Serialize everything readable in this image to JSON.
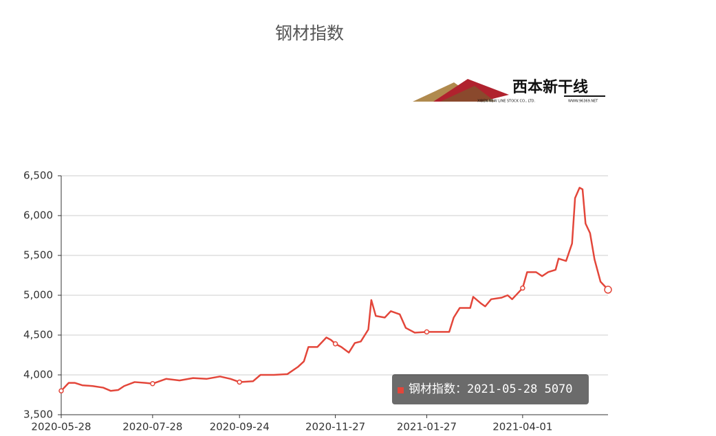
{
  "chart_data": {
    "type": "line",
    "title": "钢材指数",
    "logo": {
      "name": "西本新干线",
      "company": "XIBEN NEW LINE STOCK CO., LTD.",
      "url": "WWW.96369.NET"
    },
    "tooltip": "钢材指数：2021-05-28 5070",
    "x": [
      "2020-05-28",
      "2020-06-02",
      "2020-06-06",
      "2020-06-11",
      "2020-06-18",
      "2020-06-25",
      "2020-06-30",
      "2020-07-05",
      "2020-07-09",
      "2020-07-16",
      "2020-07-23",
      "2020-07-28",
      "2020-08-06",
      "2020-08-15",
      "2020-08-24",
      "2020-09-02",
      "2020-09-11",
      "2020-09-18",
      "2020-09-24",
      "2020-10-03",
      "2020-10-08",
      "2020-10-17",
      "2020-10-26",
      "2020-11-02",
      "2020-11-06",
      "2020-11-09",
      "2020-11-15",
      "2020-11-21",
      "2020-11-24",
      "2020-11-27",
      "2020-12-01",
      "2020-12-06",
      "2020-12-10",
      "2020-12-14",
      "2020-12-19",
      "2020-12-21",
      "2020-12-24",
      "2020-12-30",
      "2021-01-03",
      "2021-01-09",
      "2021-01-13",
      "2021-01-19",
      "2021-01-27",
      "2021-02-11",
      "2021-02-14",
      "2021-02-18",
      "2021-02-25",
      "2021-02-27",
      "2021-03-04",
      "2021-03-07",
      "2021-03-11",
      "2021-03-18",
      "2021-03-22",
      "2021-03-25",
      "2021-04-01",
      "2021-04-04",
      "2021-04-10",
      "2021-04-14",
      "2021-04-18",
      "2021-04-23",
      "2021-04-25",
      "2021-04-30",
      "2021-05-04",
      "2021-05-06",
      "2021-05-09",
      "2021-05-11",
      "2021-05-13",
      "2021-05-16",
      "2021-05-19",
      "2021-05-23",
      "2021-05-28"
    ],
    "series": [
      {
        "name": "钢材指数",
        "color": "#e3463a",
        "values": [
          3800,
          3900,
          3900,
          3870,
          3860,
          3840,
          3800,
          3810,
          3860,
          3910,
          3900,
          3890,
          3950,
          3930,
          3960,
          3950,
          3980,
          3950,
          3910,
          3920,
          4000,
          4000,
          4010,
          4100,
          4170,
          4350,
          4350,
          4470,
          4440,
          4390,
          4350,
          4280,
          4400,
          4420,
          4570,
          4940,
          4740,
          4720,
          4800,
          4760,
          4590,
          4530,
          4540,
          4540,
          4720,
          4840,
          4840,
          4980,
          4900,
          4860,
          4950,
          4970,
          5000,
          4950,
          5090,
          5290,
          5290,
          5240,
          5290,
          5320,
          5460,
          5430,
          5650,
          6220,
          6350,
          6330,
          5900,
          5780,
          5450,
          5170,
          5070
        ]
      }
    ],
    "xlim": [
      "2020-05-28",
      "2021-05-28"
    ],
    "xticks": [
      "2020-05-28",
      "2020-07-28",
      "2020-09-24",
      "2020-11-27",
      "2021-01-27",
      "2021-04-01"
    ],
    "ylim": [
      3500,
      6500
    ],
    "yticks": [
      {
        "value": 3500,
        "label": "3,500"
      },
      {
        "value": 4000,
        "label": "4,000"
      },
      {
        "value": 4500,
        "label": "4,500"
      },
      {
        "value": 5000,
        "label": "5,000"
      },
      {
        "value": 5500,
        "label": "5,500"
      },
      {
        "value": 6000,
        "label": "6,000"
      },
      {
        "value": 6500,
        "label": "6,500"
      }
    ],
    "grid": true
  }
}
